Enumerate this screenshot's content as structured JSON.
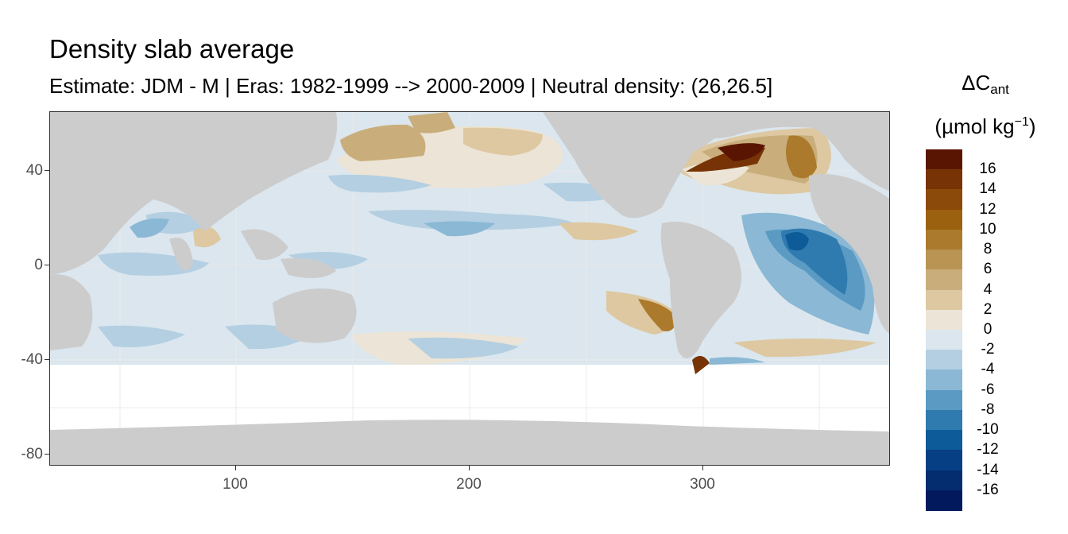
{
  "title": "Density slab average",
  "subtitle": "Estimate: JDM - M | Eras: 1982-1999 --> 2000-2009 | Neutral density: (26,26.5]",
  "legend": {
    "title_main": "ΔC",
    "title_sub": "ant",
    "unit_prefix": "(µmol kg",
    "unit_exp": "−1",
    "unit_suffix": ")",
    "labels": [
      "16",
      "14",
      "12",
      "10",
      "8",
      "6",
      "4",
      "2",
      "0",
      "-2",
      "-4",
      "-6",
      "-8",
      "-10",
      "-12",
      "-14",
      "-16"
    ],
    "colors": [
      "#5a1502",
      "#773306",
      "#8b4a0a",
      "#9b610f",
      "#ab7a2c",
      "#b99452",
      "#c9ae7c",
      "#ddc8a1",
      "#ece4d6",
      "#dbe6ee",
      "#b4cfe2",
      "#8ab8d5",
      "#5a9ac3",
      "#2f7bb0",
      "#0d5b98",
      "#073f85",
      "#042d70",
      "#02195e"
    ]
  },
  "colors": {
    "land": "#cccccc",
    "no_data": "#ffffff",
    "grid": "#ebebeb"
  },
  "axes": {
    "x_ticks": [
      "100",
      "200",
      "300"
    ],
    "y_ticks": [
      "40",
      "0",
      "-40",
      "-80"
    ]
  }
}
